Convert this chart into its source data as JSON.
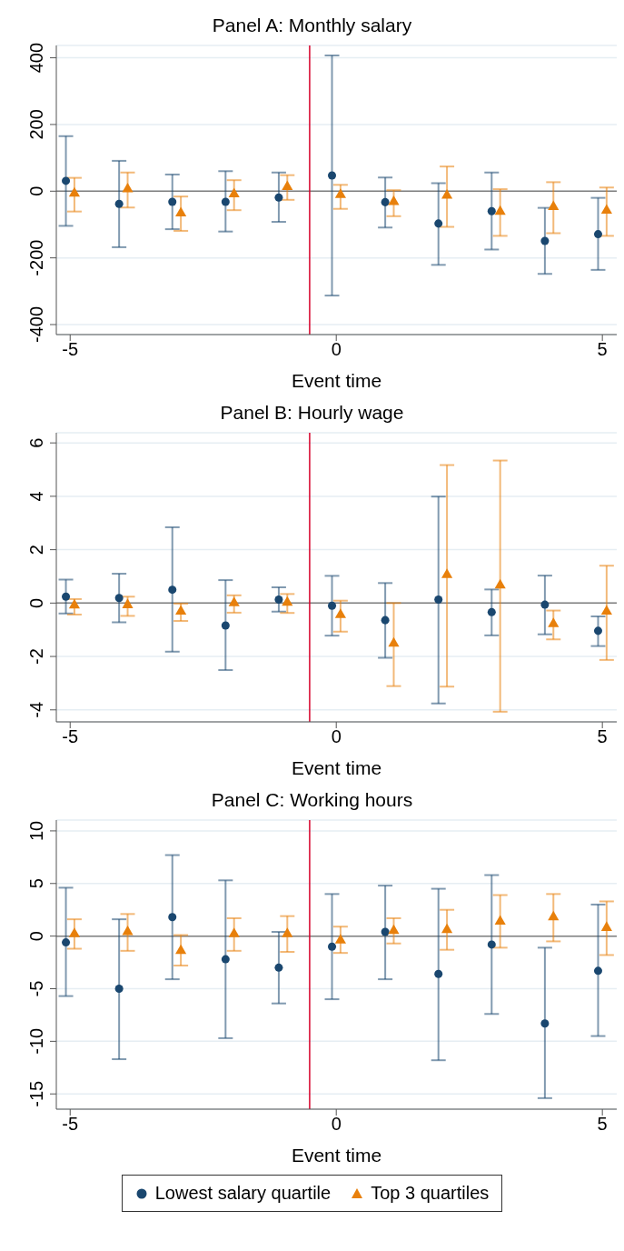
{
  "chart_data": [
    {
      "type": "scatter",
      "title": "Panel A: Monthly salary",
      "xlabel": "Event time",
      "xlim": [
        -5.26,
        5.27
      ],
      "xticks": [
        -5,
        0,
        5
      ],
      "ylim": [
        -430,
        437
      ],
      "yticks": [
        -400,
        -200,
        0,
        200,
        400
      ],
      "grid": "y",
      "legend": false,
      "ref_lines": [
        {
          "axis": "y",
          "value": 0,
          "color": "#7f7f7f"
        },
        {
          "axis": "x",
          "value": -0.5,
          "color": "#d6002a"
        }
      ],
      "series": [
        {
          "color": "#1a476f",
          "marker": "circle",
          "x": [
            -5.08,
            -4.08,
            -3.08,
            -2.08,
            -1.08,
            -0.08,
            0.92,
            1.92,
            2.92,
            3.92,
            4.92
          ],
          "values": [
            31,
            -38,
            -32,
            -32,
            -19,
            47,
            -33,
            -97,
            -60,
            -149,
            -129
          ],
          "errors": [
            [
              -104,
              165
            ],
            [
              -168,
              91
            ],
            [
              -114,
              50
            ],
            [
              -121,
              60
            ],
            [
              -92,
              56
            ],
            [
              -313,
              407
            ],
            [
              -109,
              41
            ],
            [
              -221,
              24
            ],
            [
              -175,
              56
            ],
            [
              -248,
              -50
            ],
            [
              -236,
              -20
            ]
          ]
        },
        {
          "color": "#e8800b",
          "marker": "triangle",
          "x": [
            -4.92,
            -3.92,
            -2.92,
            -1.92,
            -0.92,
            0.08,
            1.08,
            2.08,
            3.08,
            4.08,
            5.08
          ],
          "values": [
            -7,
            6,
            -66,
            -9,
            13,
            -11,
            -32,
            -13,
            -61,
            -47,
            -58
          ],
          "errors": [
            [
              -61,
              40
            ],
            [
              -49,
              56
            ],
            [
              -119,
              -16
            ],
            [
              -57,
              33
            ],
            [
              -26,
              48
            ],
            [
              -53,
              19
            ],
            [
              -75,
              3
            ],
            [
              -107,
              74
            ],
            [
              -134,
              6
            ],
            [
              -126,
              27
            ],
            [
              -134,
              11
            ]
          ]
        }
      ]
    },
    {
      "type": "scatter",
      "title": "Panel B: Hourly wage",
      "xlabel": "Event time",
      "xlim": [
        -5.26,
        5.27
      ],
      "xticks": [
        -5,
        0,
        5
      ],
      "ylim": [
        -4.45,
        6.38
      ],
      "yticks": [
        -4,
        -2,
        0,
        2,
        4,
        6
      ],
      "grid": "y",
      "legend": false,
      "ref_lines": [
        {
          "axis": "y",
          "value": 0,
          "color": "#7f7f7f"
        },
        {
          "axis": "x",
          "value": -0.5,
          "color": "#d6002a"
        }
      ],
      "series": [
        {
          "color": "#1a476f",
          "marker": "circle",
          "x": [
            -5.08,
            -4.08,
            -3.08,
            -2.08,
            -1.08,
            -0.08,
            0.92,
            1.92,
            2.92,
            3.92,
            4.92
          ],
          "values": [
            0.24,
            0.19,
            0.5,
            -0.84,
            0.13,
            -0.1,
            -0.64,
            0.13,
            -0.34,
            -0.06,
            -1.04
          ],
          "errors": [
            [
              -0.39,
              0.88
            ],
            [
              -0.72,
              1.1
            ],
            [
              -1.82,
              2.84
            ],
            [
              -2.51,
              0.86
            ],
            [
              -0.32,
              0.59
            ],
            [
              -1.22,
              1.02
            ],
            [
              -2.05,
              0.75
            ],
            [
              -3.76,
              3.99
            ],
            [
              -1.21,
              0.51
            ],
            [
              -1.17,
              1.03
            ],
            [
              -1.61,
              -0.5
            ]
          ]
        },
        {
          "color": "#e8800b",
          "marker": "triangle",
          "x": [
            -4.92,
            -3.92,
            -2.92,
            -1.92,
            -0.92,
            0.08,
            1.08,
            2.08,
            3.08,
            4.08,
            5.08
          ],
          "values": [
            -0.08,
            -0.07,
            -0.31,
            0.0,
            0.02,
            -0.44,
            -1.51,
            1.06,
            0.67,
            -0.78,
            -0.31
          ],
          "errors": [
            [
              -0.43,
              0.15
            ],
            [
              -0.48,
              0.24
            ],
            [
              -0.67,
              -0.02
            ],
            [
              -0.36,
              0.29
            ],
            [
              -0.37,
              0.34
            ],
            [
              -1.07,
              0.09
            ],
            [
              -3.11,
              0.0
            ],
            [
              -3.13,
              5.17
            ],
            [
              -4.07,
              5.34
            ],
            [
              -1.36,
              -0.28
            ],
            [
              -2.13,
              1.4
            ]
          ]
        }
      ]
    },
    {
      "type": "scatter",
      "title": "Panel C: Working hours",
      "xlabel": "Event time",
      "xlim": [
        -5.26,
        5.27
      ],
      "xticks": [
        -5,
        0,
        5
      ],
      "ylim": [
        -16.45,
        11.03
      ],
      "yticks": [
        -15,
        -10,
        -5,
        0,
        5,
        10
      ],
      "grid": "y",
      "legend": "bottom",
      "ref_lines": [
        {
          "axis": "y",
          "value": 0,
          "color": "#7f7f7f"
        },
        {
          "axis": "x",
          "value": -0.5,
          "color": "#d6002a"
        }
      ],
      "series": [
        {
          "name": "Lowest salary quartile",
          "color": "#1a476f",
          "marker": "circle",
          "x": [
            -5.08,
            -4.08,
            -3.08,
            -2.08,
            -1.08,
            -0.08,
            0.92,
            1.92,
            2.92,
            3.92,
            4.92
          ],
          "values": [
            -0.6,
            -5.0,
            1.8,
            -2.2,
            -3.0,
            -1.0,
            0.4,
            -3.6,
            -0.8,
            -8.3,
            -3.3
          ],
          "errors": [
            [
              -5.7,
              4.6
            ],
            [
              -11.7,
              1.6
            ],
            [
              -4.1,
              7.7
            ],
            [
              -9.7,
              5.3
            ],
            [
              -6.4,
              0.4
            ],
            [
              -6.0,
              4.0
            ],
            [
              -4.1,
              4.8
            ],
            [
              -11.8,
              4.5
            ],
            [
              -7.4,
              5.8
            ],
            [
              -15.4,
              -1.1
            ],
            [
              -9.5,
              3.0
            ]
          ]
        },
        {
          "name": "Top 3 quartiles",
          "color": "#e8800b",
          "marker": "triangle",
          "x": [
            -4.92,
            -3.92,
            -2.92,
            -1.92,
            -0.92,
            0.08,
            1.08,
            2.08,
            3.08,
            4.08,
            5.08
          ],
          "values": [
            0.2,
            0.4,
            -1.4,
            0.2,
            0.2,
            -0.4,
            0.5,
            0.6,
            1.4,
            1.8,
            0.8
          ],
          "errors": [
            [
              -1.2,
              1.6
            ],
            [
              -1.4,
              2.1
            ],
            [
              -2.8,
              0.1
            ],
            [
              -1.4,
              1.7
            ],
            [
              -1.5,
              1.9
            ],
            [
              -1.6,
              0.9
            ],
            [
              -0.7,
              1.7
            ],
            [
              -1.3,
              2.5
            ],
            [
              -1.1,
              3.9
            ],
            [
              -0.5,
              4.0
            ],
            [
              -1.8,
              3.3
            ]
          ]
        }
      ]
    }
  ]
}
